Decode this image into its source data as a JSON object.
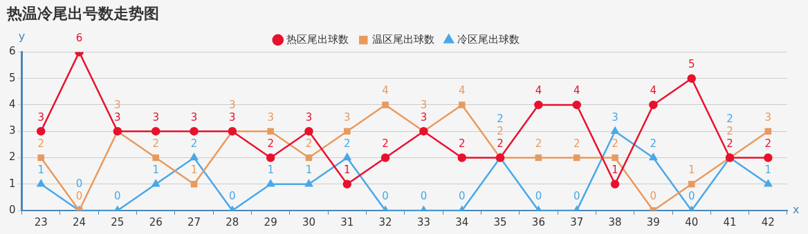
{
  "chart_data": {
    "type": "line",
    "title": "热温冷尾出号数走势图",
    "xlabel": "x",
    "ylabel": "y",
    "categories": [
      "23",
      "24",
      "25",
      "26",
      "27",
      "28",
      "29",
      "30",
      "31",
      "32",
      "33",
      "34",
      "35",
      "36",
      "37",
      "38",
      "39",
      "40",
      "41",
      "42"
    ],
    "series": [
      {
        "name": "热区尾出球数",
        "color": "#e8112d",
        "marker": "circle",
        "values": [
          3,
          6,
          3,
          3,
          3,
          3,
          2,
          3,
          1,
          2,
          3,
          2,
          2,
          4,
          4,
          1,
          4,
          5,
          2,
          2
        ]
      },
      {
        "name": "温区尾出球数",
        "color": "#e89a5e",
        "marker": "square",
        "values": [
          2,
          0,
          3,
          2,
          1,
          3,
          3,
          2,
          3,
          4,
          3,
          4,
          2,
          2,
          2,
          2,
          0,
          1,
          2,
          3
        ]
      },
      {
        "name": "冷区尾出球数",
        "color": "#48a8e8",
        "marker": "triangle",
        "values": [
          1,
          0,
          0,
          1,
          2,
          0,
          1,
          1,
          2,
          0,
          0,
          0,
          2,
          0,
          0,
          3,
          2,
          0,
          2,
          1
        ]
      }
    ],
    "ylim": [
      0,
      6
    ],
    "yticks": [
      0,
      1,
      2,
      3,
      4,
      5,
      6
    ],
    "grid": "y",
    "legend": "top",
    "data_labels": true
  }
}
